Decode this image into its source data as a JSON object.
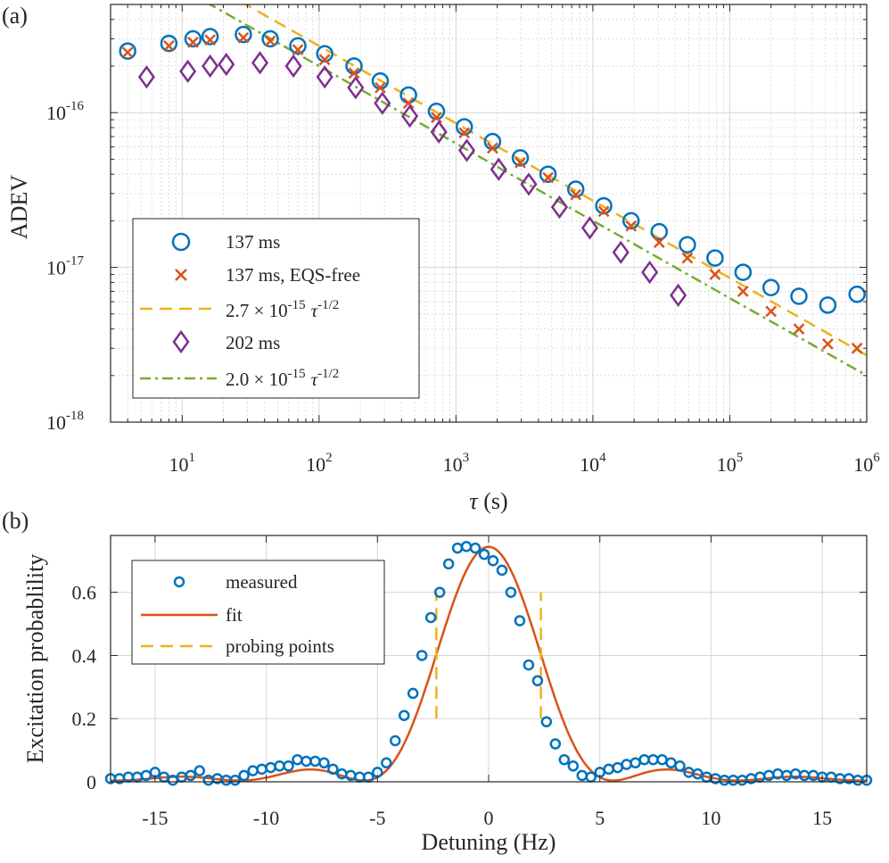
{
  "panels": {
    "a": "(a)",
    "b": "(b)"
  },
  "chart_data": [
    {
      "type": "scatter",
      "panel": "(a)",
      "scale": "log-log",
      "xlabel_symbol": "τ",
      "xlabel_unit": " (s)",
      "ylabel": "ADEV",
      "xlim": [
        3,
        1000000
      ],
      "ylim": [
        1e-18,
        5e-16
      ],
      "xticks": [
        {
          "base": "10",
          "exp": "1",
          "value": 10
        },
        {
          "base": "10",
          "exp": "2",
          "value": 100
        },
        {
          "base": "10",
          "exp": "3",
          "value": 1000
        },
        {
          "base": "10",
          "exp": "4",
          "value": 10000
        },
        {
          "base": "10",
          "exp": "5",
          "value": 100000
        },
        {
          "base": "10",
          "exp": "6",
          "value": 1000000
        }
      ],
      "yticks": [
        {
          "base": "10",
          "exp": "-16",
          "value": 1e-16
        },
        {
          "base": "10",
          "exp": "-17",
          "value": 1e-17
        },
        {
          "base": "10",
          "exp": "-18",
          "value": 1e-18
        }
      ],
      "series": [
        {
          "name": "137 ms",
          "marker": "circle",
          "color": "#0072BD",
          "x": [
            4,
            8,
            12,
            16,
            28,
            44,
            70,
            110,
            180,
            280,
            450,
            720,
            1150,
            1850,
            2950,
            4700,
            7500,
            12000,
            19000,
            30500,
            49000,
            78000,
            125000,
            200000,
            320000,
            520000,
            850000
          ],
          "y": [
            2.5e-16,
            2.8e-16,
            3e-16,
            3.1e-16,
            3.2e-16,
            3e-16,
            2.7e-16,
            2.4e-16,
            2e-16,
            1.6e-16,
            1.3e-16,
            1.02e-16,
            8.1e-17,
            6.5e-17,
            5.1e-17,
            4e-17,
            3.2e-17,
            2.5e-17,
            2e-17,
            1.7e-17,
            1.4e-17,
            1.15e-17,
            9.3e-18,
            7.4e-18,
            6.5e-18,
            5.7e-18,
            6.7e-18
          ]
        },
        {
          "name": "137 ms, EQS-free",
          "marker": "cross",
          "color": "#D95319",
          "x": [
            4,
            8,
            12,
            16,
            28,
            44,
            70,
            110,
            180,
            280,
            450,
            720,
            1150,
            1850,
            2950,
            4700,
            7500,
            12000,
            19000,
            30500,
            49000,
            78000,
            125000,
            200000,
            320000,
            520000,
            850000
          ],
          "y": [
            2.45e-16,
            2.7e-16,
            2.85e-16,
            2.95e-16,
            3.05e-16,
            2.9e-16,
            2.55e-16,
            2.2e-16,
            1.8e-16,
            1.45e-16,
            1.15e-16,
            9.3e-17,
            7.4e-17,
            5.9e-17,
            4.75e-17,
            3.8e-17,
            2.95e-17,
            2.3e-17,
            1.85e-17,
            1.45e-17,
            1.15e-17,
            9e-18,
            7e-18,
            5.2e-18,
            4e-18,
            3.2e-18,
            3e-18
          ]
        },
        {
          "name": "2.7 × 10^-15 τ^-1/2",
          "legend_base": "2.7 × 10",
          "legend_exp": "-15",
          "line": "dashed",
          "color": "#EDB120",
          "coefficient": 2.7e-15,
          "exponent": -0.5,
          "x_range": [
            20,
            1000000
          ]
        },
        {
          "name": "202 ms",
          "marker": "diamond",
          "color": "#7E2F8E",
          "x": [
            5.5,
            11,
            16,
            21,
            37,
            65,
            110,
            185,
            290,
            460,
            750,
            1200,
            2050,
            3400,
            5700,
            9500,
            16000,
            26000,
            42000
          ],
          "y": [
            1.7e-16,
            1.85e-16,
            2e-16,
            2.05e-16,
            2.1e-16,
            2e-16,
            1.7e-16,
            1.45e-16,
            1.15e-16,
            9.5e-17,
            7.5e-17,
            5.7e-17,
            4.3e-17,
            3.45e-17,
            2.45e-17,
            1.8e-17,
            1.25e-17,
            9.3e-18,
            6.6e-18
          ]
        },
        {
          "name": "2.0 × 10^-15 τ^-1/2",
          "legend_base": "2.0 × 10",
          "legend_exp": "-15",
          "line": "dash-dot",
          "color": "#77AC30",
          "coefficient": 2e-15,
          "exponent": -0.5,
          "x_range": [
            15,
            1000000
          ]
        }
      ],
      "legend_tau": "τ",
      "legend_tau_exp": "-1/2",
      "legend_position": "bottom-left"
    },
    {
      "type": "line",
      "panel": "(b)",
      "xlabel": "Detuning (Hz)",
      "ylabel": "Excitation probablility",
      "xlim": [
        -17,
        17
      ],
      "ylim": [
        0,
        0.78
      ],
      "xticks": [
        "-15",
        "-10",
        "-5",
        "0",
        "5",
        "10",
        "15"
      ],
      "xtick_values": [
        -15,
        -10,
        -5,
        0,
        5,
        10,
        15
      ],
      "yticks": [
        "0",
        "0.2",
        "0.4",
        "0.6"
      ],
      "ytick_values": [
        0,
        0.2,
        0.4,
        0.6
      ],
      "series": [
        {
          "name": "measured",
          "marker": "circle",
          "color": "#0072BD",
          "x": [
            -17,
            -16.6,
            -16.2,
            -15.8,
            -15.4,
            -15,
            -14.6,
            -14.2,
            -13.8,
            -13.4,
            -13,
            -12.6,
            -12.2,
            -11.8,
            -11.4,
            -11,
            -10.6,
            -10.2,
            -9.8,
            -9.4,
            -9,
            -8.6,
            -8.2,
            -7.8,
            -7.4,
            -7,
            -6.6,
            -6.2,
            -5.8,
            -5.4,
            -5,
            -4.6,
            -4.2,
            -3.8,
            -3.4,
            -3,
            -2.6,
            -2.2,
            -1.8,
            -1.4,
            -1,
            -0.6,
            -0.2,
            0.2,
            0.6,
            1,
            1.4,
            1.8,
            2.2,
            2.6,
            3,
            3.4,
            3.8,
            4.2,
            4.6,
            5,
            5.4,
            5.8,
            6.2,
            6.6,
            7,
            7.4,
            7.8,
            8.2,
            8.6,
            9,
            9.4,
            9.8,
            10.2,
            10.6,
            11,
            11.4,
            11.8,
            12.2,
            12.6,
            13,
            13.4,
            13.8,
            14.2,
            14.6,
            15,
            15.4,
            15.8,
            16.2,
            16.6,
            17
          ],
          "y": [
            0.01,
            0.01,
            0.015,
            0.015,
            0.02,
            0.03,
            0.015,
            0.005,
            0.015,
            0.02,
            0.035,
            0.005,
            0.01,
            0.005,
            0.005,
            0.02,
            0.035,
            0.04,
            0.045,
            0.05,
            0.05,
            0.07,
            0.065,
            0.065,
            0.06,
            0.04,
            0.025,
            0.02,
            0.015,
            0.015,
            0.03,
            0.06,
            0.13,
            0.21,
            0.28,
            0.4,
            0.52,
            0.6,
            0.69,
            0.74,
            0.745,
            0.74,
            0.72,
            0.7,
            0.67,
            0.6,
            0.51,
            0.37,
            0.32,
            0.19,
            0.12,
            0.07,
            0.05,
            0.02,
            0.015,
            0.03,
            0.04,
            0.045,
            0.055,
            0.06,
            0.07,
            0.07,
            0.07,
            0.06,
            0.05,
            0.03,
            0.025,
            0.015,
            0.01,
            0.005,
            0.005,
            0.005,
            0.01,
            0.015,
            0.02,
            0.025,
            0.02,
            0.025,
            0.02,
            0.02,
            0.015,
            0.015,
            0.01,
            0.01,
            0.005,
            0.005
          ]
        },
        {
          "name": "fit",
          "line": "solid",
          "color": "#D95319",
          "model": "sinc-squared",
          "peak": 0.74,
          "center_hz": 0,
          "half_width_first_zero_hz": 5.6
        },
        {
          "name": "probing points",
          "line": "dashed",
          "color": "#EDB120",
          "x_positions": [
            -2.35,
            2.35
          ],
          "y_range": [
            0.2,
            0.6
          ]
        }
      ],
      "legend_position": "top-left"
    }
  ]
}
